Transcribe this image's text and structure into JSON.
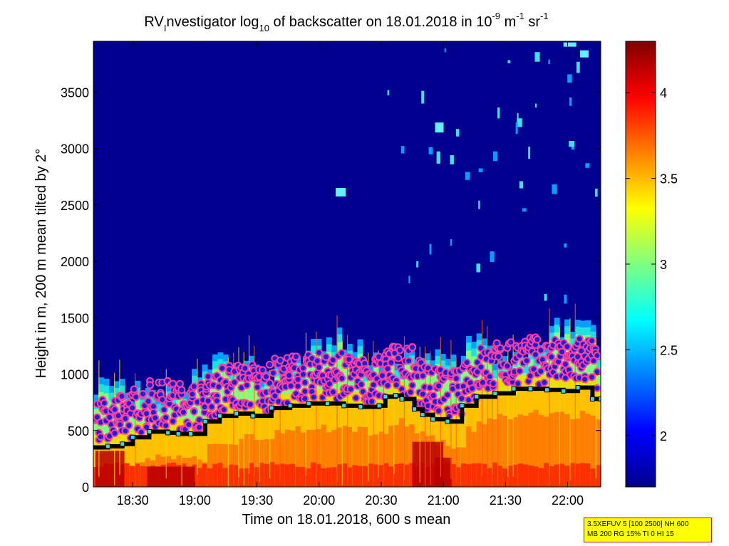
{
  "chart_data": {
    "type": "heatmap",
    "title": {
      "pre": "RV",
      "sub1": "I",
      "mid": "nvestigator log",
      "sub2": "10",
      "after": " of backscatter on 18.01.2018 in 10",
      "sup1": "-9",
      "unit1": " m",
      "sup2": "-1",
      "unit2": " sr",
      "sup3": "-1"
    },
    "xlabel": "Time on 18.01.2018, 600 s mean",
    "ylabel": "Height in m, 200 m mean tilted by 2°",
    "x_ticks": [
      "18:30",
      "19:00",
      "19:30",
      "20:00",
      "20:30",
      "21:00",
      "21:30",
      "22:00"
    ],
    "x_tick_minutes": [
      30,
      60,
      90,
      120,
      150,
      180,
      210,
      240
    ],
    "x_range_minutes": [
      11,
      256
    ],
    "x_origin": "18:00",
    "y_ticks": [
      0,
      500,
      1000,
      1500,
      2000,
      2500,
      3000,
      3500
    ],
    "y_range": [
      0,
      3950
    ],
    "colorbar": {
      "ticks": [
        "2",
        "2.5",
        "3",
        "3.5",
        "4"
      ],
      "tick_values": [
        2,
        2.5,
        3,
        3.5,
        4
      ],
      "range": [
        1.7,
        4.3
      ]
    },
    "series": [
      {
        "name": "",
        "kind": "step-line",
        "x": [
          11,
          18,
          25,
          30,
          38,
          47,
          52,
          58,
          65,
          72,
          80,
          88,
          97,
          106,
          115,
          124,
          132,
          140,
          149,
          152,
          157,
          160,
          166,
          170,
          175,
          182,
          189,
          196,
          205,
          214,
          222,
          230,
          238,
          245,
          252,
          256
        ],
        "y": [
          350,
          360,
          380,
          440,
          490,
          480,
          470,
          470,
          580,
          630,
          650,
          630,
          700,
          720,
          740,
          740,
          720,
          710,
          720,
          800,
          810,
          780,
          690,
          640,
          600,
          580,
          720,
          800,
          830,
          870,
          870,
          860,
          850,
          880,
          780,
          780
        ]
      }
    ],
    "colors": {
      "background": "#00008f",
      "boundary_line": "#000000",
      "step_marker": "#33dddd",
      "cloud_marker_fill": "#1010d0",
      "cloud_marker_ring": "#ff00a0"
    }
  },
  "info_box": {
    "line1": "3.5XEFUV 5 [100 2500] NH 600",
    "line2": "MB 200 RG 15% TI 0 HI 15"
  }
}
